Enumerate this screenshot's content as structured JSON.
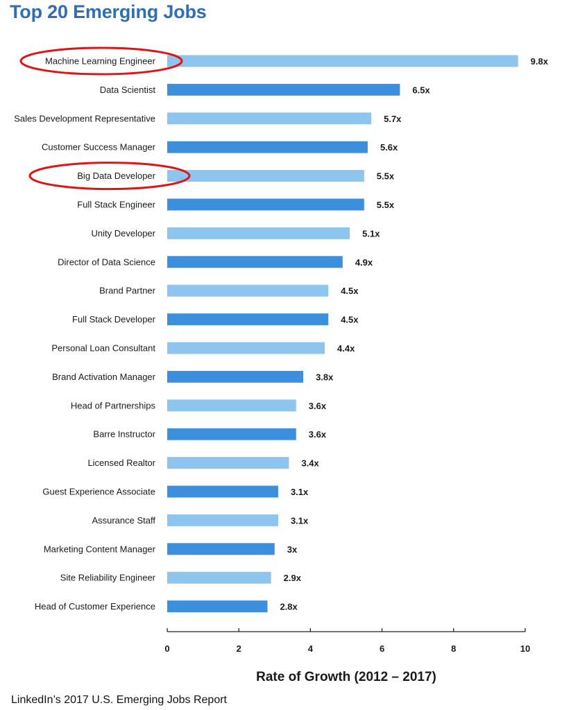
{
  "page": {
    "source_note": "LinkedIn’s 2017 U.S. Emerging Jobs Report"
  },
  "colors": {
    "title": "#2f6db5",
    "bar_dark": "#3c8fdc",
    "bar_light": "#8ec5ee",
    "highlight_ring": "#e01414",
    "axis": "#222222"
  },
  "chart_data": {
    "type": "bar",
    "orientation": "horizontal",
    "title": "Top 20 Emerging Jobs",
    "xlabel": "Rate of Growth (2012 – 2017)",
    "ylabel": "",
    "xlim": [
      0,
      10
    ],
    "xticks": [
      0,
      2,
      4,
      6,
      8,
      10
    ],
    "grid": false,
    "categories": [
      "Machine Learning Engineer",
      "Data Scientist",
      "Sales Development Representative",
      "Customer Success Manager",
      "Big Data Developer",
      "Full Stack Engineer",
      "Unity Developer",
      "Director of Data Science",
      "Brand Partner",
      "Full Stack Developer",
      "Personal Loan Consultant",
      "Brand Activation Manager",
      "Head of Partnerships",
      "Barre Instructor",
      "Licensed Realtor",
      "Guest Experience Associate",
      "Assurance Staff",
      "Marketing Content Manager",
      "Site Reliability Engineer",
      "Head of Customer Experience"
    ],
    "values": [
      9.8,
      6.5,
      5.7,
      5.6,
      5.5,
      5.5,
      5.1,
      4.9,
      4.5,
      4.5,
      4.4,
      3.8,
      3.6,
      3.6,
      3.4,
      3.1,
      3.1,
      3,
      2.9,
      2.8
    ],
    "value_labels": [
      "9.8x",
      "6.5x",
      "5.7x",
      "5.6x",
      "5.5x",
      "5.5x",
      "5.1x",
      "4.9x",
      "4.5x",
      "4.5x",
      "4.4x",
      "3.8x",
      "3.6x",
      "3.6x",
      "3.4x",
      "3.1x",
      "3.1x",
      "3x",
      "2.9x",
      "2.8x"
    ],
    "bar_shades": [
      "light",
      "dark",
      "light",
      "dark",
      "light",
      "dark",
      "light",
      "dark",
      "light",
      "dark",
      "light",
      "dark",
      "light",
      "dark",
      "light",
      "dark",
      "light",
      "dark",
      "light",
      "dark"
    ],
    "highlighted": [
      "Machine Learning Engineer",
      "Big Data Developer"
    ]
  }
}
